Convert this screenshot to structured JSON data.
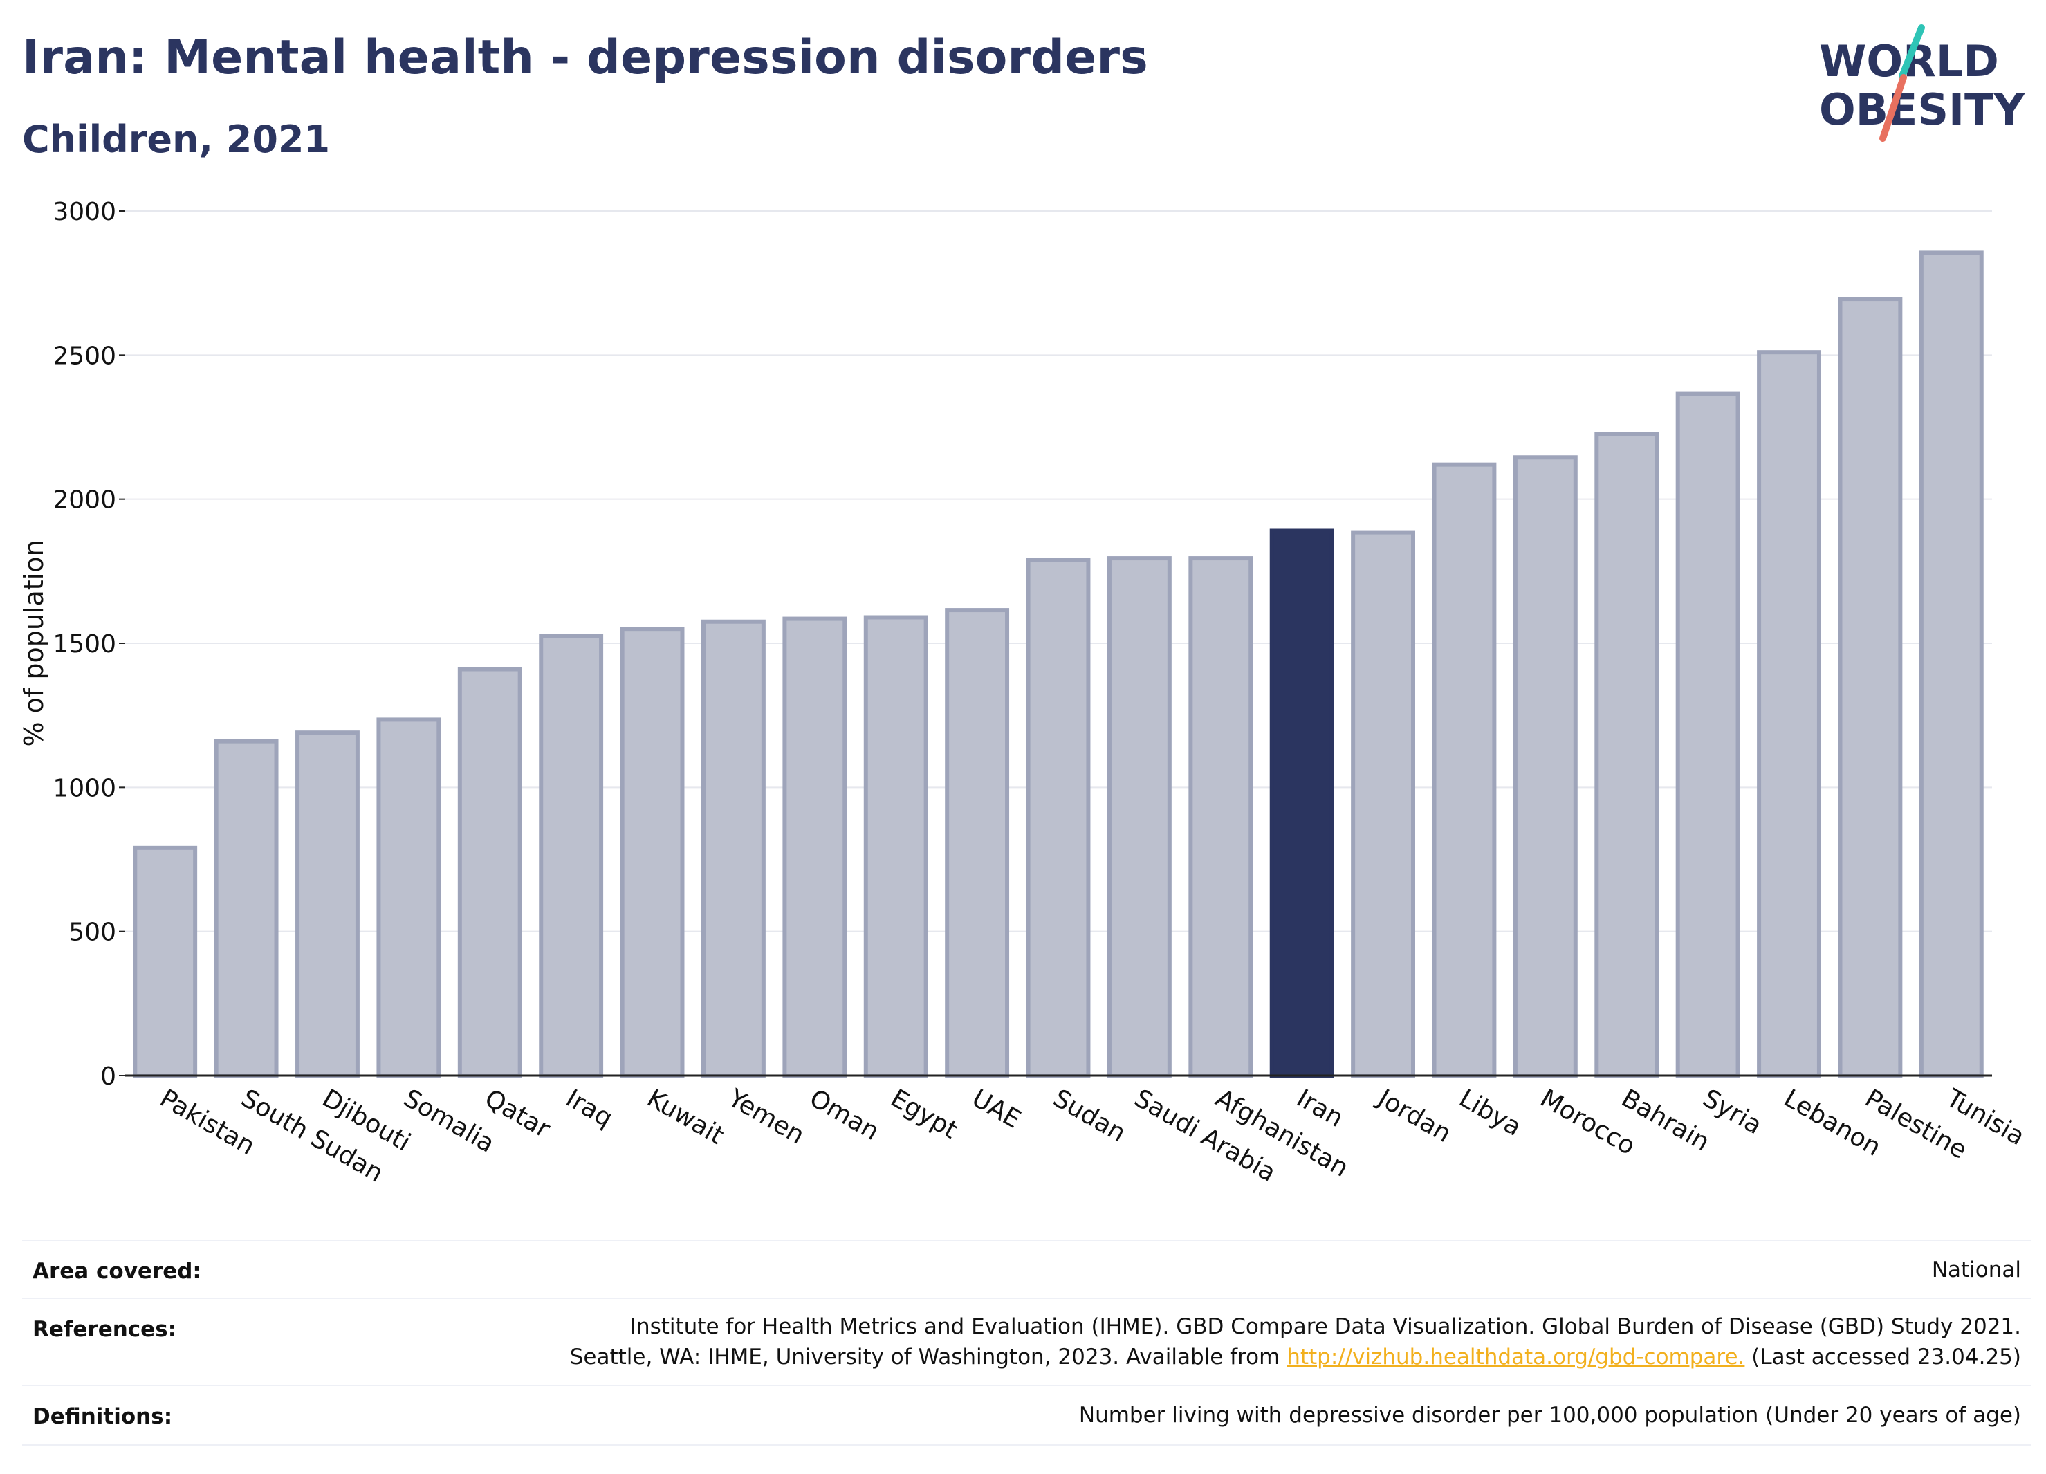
{
  "header": {
    "title": "Iran: Mental health - depression disorders",
    "subtitle": "Children, 2021"
  },
  "logo": {
    "line1": "WORLD",
    "line2": "OBESITY",
    "icon": "world-obesity-logo"
  },
  "chart_data": {
    "type": "bar",
    "title": "Iran: Mental health - depression disorders",
    "subtitle": "Children, 2021",
    "xlabel": "",
    "ylabel": "% of population",
    "ylim": [
      0,
      3000
    ],
    "yticks": [
      0,
      500,
      1000,
      1500,
      2000,
      2500,
      3000
    ],
    "grid": true,
    "highlight": "Iran",
    "colors": {
      "bar": "#bcc0ce",
      "bar_border": "#9ea4ba",
      "highlight": "#2b3560"
    },
    "categories": [
      "Pakistan",
      "South Sudan",
      "Djibouti",
      "Somalia",
      "Qatar",
      "Iraq",
      "Kuwait",
      "Yemen",
      "Oman",
      "Egypt",
      "UAE",
      "Sudan",
      "Saudi Arabia",
      "Afghanistan",
      "Iran",
      "Jordan",
      "Libya",
      "Morocco",
      "Bahrain",
      "Syria",
      "Lebanon",
      "Palestine",
      "Tunisia"
    ],
    "values": [
      790,
      1160,
      1190,
      1235,
      1410,
      1525,
      1550,
      1575,
      1585,
      1590,
      1615,
      1790,
      1795,
      1795,
      1890,
      1885,
      2120,
      2145,
      2225,
      2365,
      2510,
      2695,
      2855
    ]
  },
  "footer": {
    "area_label": "Area covered:",
    "area_value": "National",
    "references_label": "References:",
    "references_line1": "Institute for Health Metrics and Evaluation (IHME). GBD Compare Data Visualization. Global Burden of Disease (GBD) Study 2021.",
    "references_line2_pre": "Seattle, WA: IHME, University of Washington, 2023. Available from ",
    "references_link": "http://vizhub.healthdata.org/gbd-compare.",
    "references_line2_post": " (Last accessed 23.04.25)",
    "definitions_label": "Definitions:",
    "definitions_value": "Number living with depressive disorder per 100,000 population (Under 20 years of age)"
  }
}
